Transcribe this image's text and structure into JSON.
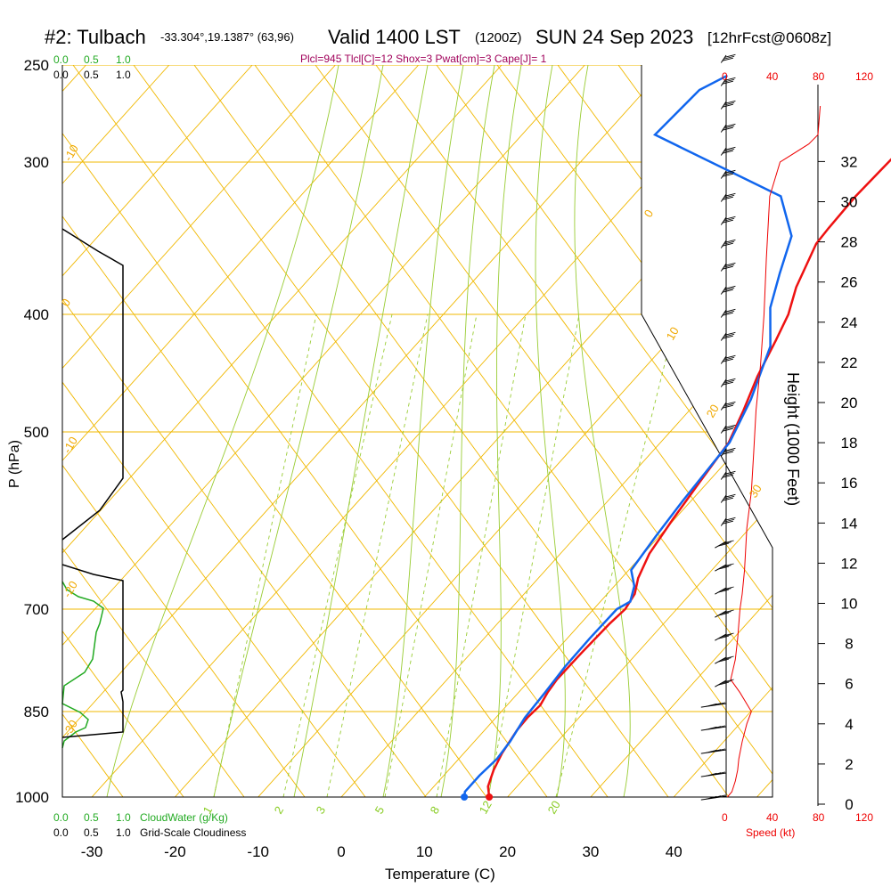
{
  "header": {
    "station": "#2: Tulbach",
    "coords": "-33.304°,19.1387° (63,96)",
    "valid": "Valid 1400 LST",
    "utc": "(1200Z)",
    "date": "SUN 24 Sep 2023",
    "forecast": "[12hrFcst@0608z]"
  },
  "subtitle": "Plcl=945 Tlcl[C]=12 Shox=3 Pwat[cm]=3 Cape[J]= 1",
  "cloud_legend": {
    "top_green": [
      "0.0",
      "0.5",
      "1.0"
    ],
    "top_black": [
      "0.0",
      "0.5",
      "1.0"
    ],
    "bottom_green": [
      "0.0",
      "0.5",
      "1.0"
    ],
    "bottom_black": [
      "0.0",
      "0.5",
      "1.0"
    ],
    "cloudwater_label": "CloudWater (g/Kg)",
    "cloudiness_label": "Grid-Scale Cloudiness"
  },
  "speed_axis": {
    "ticks": [
      "0",
      "40",
      "80",
      "120"
    ],
    "label": "Speed (kt)"
  },
  "height_axis": {
    "label": "Height (1000 Feet)"
  },
  "chart_data": {
    "type": "line",
    "title": "Valid 1400 LST (1200Z) SUN 24 Sep 2023",
    "xlabel": "Temperature (C)",
    "ylabel": "P (hPa)",
    "xlim": [
      -35,
      46
    ],
    "x_ticks": [
      -30,
      -20,
      -10,
      0,
      10,
      20,
      30,
      40
    ],
    "y_ticks": [
      250,
      300,
      400,
      500,
      700,
      850,
      1000
    ],
    "height_ticks": [
      0,
      2,
      4,
      6,
      8,
      10,
      12,
      14,
      16,
      18,
      20,
      22,
      24,
      26,
      28,
      30,
      32
    ],
    "isotherm_labels": [
      "-10",
      "0",
      "-10",
      "-20",
      "-30",
      "0",
      "10",
      "20",
      "30"
    ],
    "mixing_ratio_labels": [
      "1",
      "2",
      "3",
      "5",
      "8",
      "12",
      "20"
    ],
    "series": [
      {
        "name": "Temperature",
        "color": "#ee1111",
        "points": [
          [
            17.8,
            1000
          ],
          [
            16.5,
            980
          ],
          [
            15.4,
            950
          ],
          [
            14.6,
            920
          ],
          [
            13.9,
            880
          ],
          [
            13.8,
            860
          ],
          [
            14.0,
            840
          ],
          [
            13.5,
            820
          ],
          [
            13.2,
            800
          ],
          [
            13.3,
            760
          ],
          [
            13.5,
            720
          ],
          [
            13.8,
            700
          ],
          [
            13.3,
            680
          ],
          [
            12.0,
            660
          ],
          [
            10.7,
            630
          ],
          [
            9.8,
            590
          ],
          [
            9.0,
            550
          ],
          [
            8.2,
            510
          ],
          [
            6.5,
            480
          ],
          [
            4.5,
            450
          ],
          [
            2.8,
            420
          ],
          [
            1.5,
            400
          ],
          [
            -0.5,
            380
          ],
          [
            -2.8,
            350
          ],
          [
            -3.0,
            340
          ],
          [
            -3.2,
            320
          ],
          [
            -2.8,
            290
          ],
          [
            -1.6,
            265
          ]
        ]
      },
      {
        "name": "Dewpoint",
        "color": "#1166ee",
        "points": [
          [
            14.8,
            1000
          ],
          [
            14.3,
            990
          ],
          [
            14.3,
            960
          ],
          [
            14.6,
            930
          ],
          [
            14.3,
            900
          ],
          [
            13.5,
            860
          ],
          [
            13.2,
            820
          ],
          [
            12.8,
            780
          ],
          [
            12.7,
            740
          ],
          [
            12.8,
            700
          ],
          [
            13.6,
            690
          ],
          [
            12.4,
            670
          ],
          [
            10.3,
            650
          ],
          [
            9.6,
            610
          ],
          [
            9.0,
            570
          ],
          [
            8.3,
            510
          ],
          [
            6.2,
            470
          ],
          [
            2.8,
            425
          ],
          [
            -1.4,
            395
          ],
          [
            -4.0,
            370
          ],
          [
            -6.6,
            345
          ],
          [
            -12.2,
            320
          ],
          [
            -34.0,
            285
          ],
          [
            -33.5,
            262
          ],
          [
            -31.7,
            255
          ]
        ]
      },
      {
        "name": "Wind speed",
        "color": "#ee0000",
        "points": [
          [
            1,
            1000
          ],
          [
            5,
            990
          ],
          [
            8,
            970
          ],
          [
            10,
            950
          ],
          [
            11,
            930
          ],
          [
            14,
            900
          ],
          [
            18,
            870
          ],
          [
            22,
            850
          ],
          [
            12,
            820
          ],
          [
            4,
            800
          ],
          [
            8,
            770
          ],
          [
            10,
            740
          ],
          [
            12,
            700
          ],
          [
            14,
            680
          ],
          [
            16,
            650
          ],
          [
            18,
            600
          ],
          [
            22,
            560
          ],
          [
            24,
            520
          ],
          [
            26,
            480
          ],
          [
            30,
            440
          ],
          [
            33,
            400
          ],
          [
            35,
            360
          ],
          [
            38,
            320
          ],
          [
            47,
            300
          ],
          [
            72,
            290
          ],
          [
            80,
            285
          ],
          [
            82,
            270
          ]
        ]
      }
    ]
  }
}
